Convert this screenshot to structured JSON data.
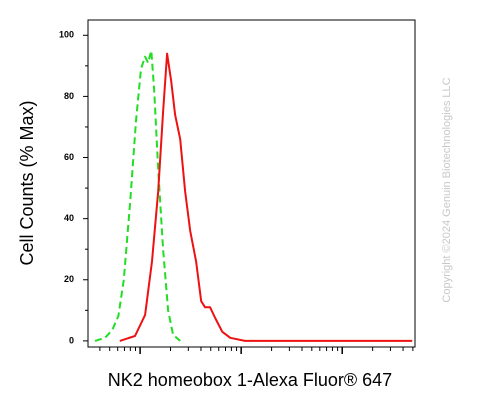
{
  "chart_data": {
    "type": "line",
    "y_label": "Cell Counts (% Max)",
    "x_label": "NK2 homeobox 1-Alexa Fluor® 647",
    "watermark": "Copyright ©2024 Genuin Biotechnologies LLC",
    "xscale": "log",
    "xlim": [
      0.305,
      525
    ],
    "xticks": [
      1,
      10,
      100
    ],
    "ylim": [
      -2,
      105
    ],
    "yticks": [
      0,
      20,
      40,
      60,
      80,
      100
    ],
    "series": [
      {
        "color": "#22dd22",
        "dash": true,
        "x": [
          0.358,
          0.45,
          0.53,
          0.61,
          0.69,
          0.8,
          0.91,
          1.02,
          1.12,
          1.2,
          1.29,
          1.38,
          1.51,
          1.69,
          1.89,
          2.12,
          2.49
        ],
        "values": [
          0,
          1,
          3.6,
          8.2,
          20,
          46,
          72,
          89,
          93,
          91,
          95,
          82,
          56,
          30,
          10,
          2,
          0
        ]
      },
      {
        "color": "#ee1111",
        "dash": false,
        "x": [
          0.63,
          0.89,
          1.12,
          1.31,
          1.51,
          1.69,
          1.85,
          2.03,
          2.22,
          2.49,
          2.79,
          3.13,
          3.58,
          4.02,
          4.4,
          4.93,
          5.53,
          6.49,
          7.78,
          10.9,
          38,
          493
        ],
        "values": [
          0,
          1.6,
          8.5,
          26,
          49,
          75,
          94,
          85,
          74,
          66,
          49,
          36,
          26,
          13,
          11,
          11,
          7.5,
          3,
          1,
          0,
          0,
          0
        ]
      }
    ]
  }
}
